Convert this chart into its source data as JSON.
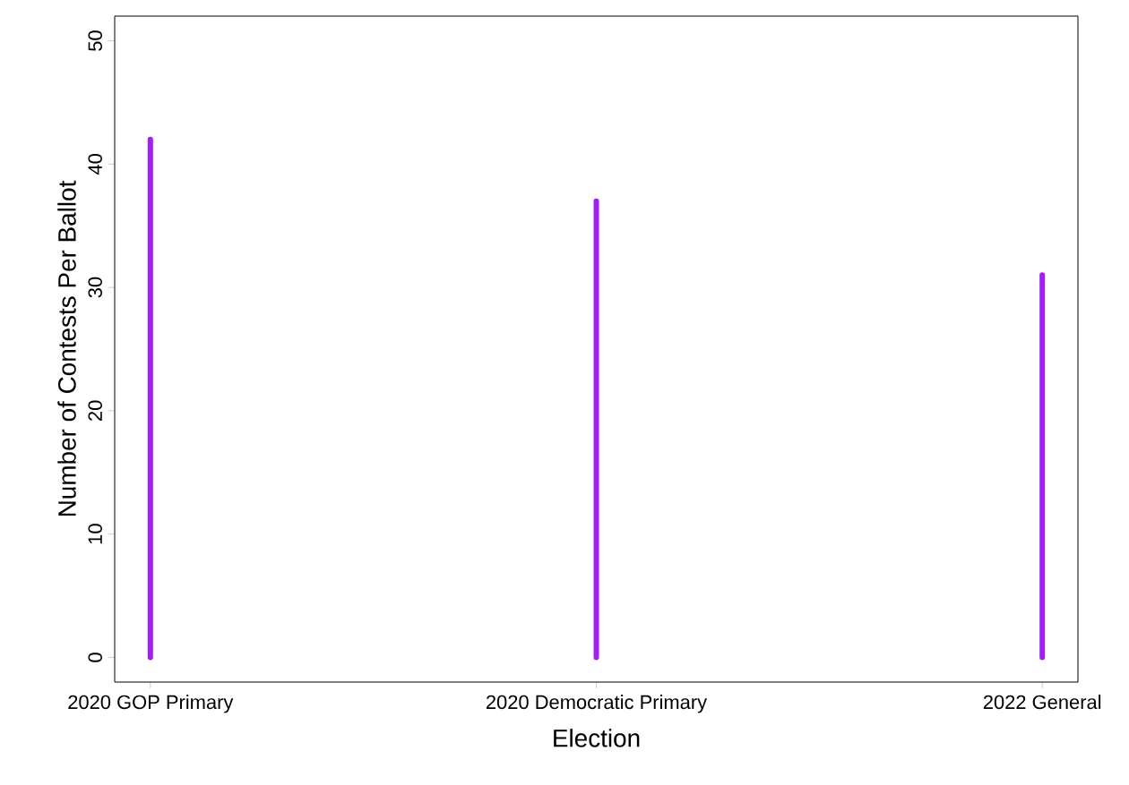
{
  "chart_data": {
    "type": "bar",
    "xlabel": "Election",
    "ylabel": "Number of Contests Per Ballot",
    "categories": [
      "2020 GOP Primary",
      "2020 Democratic Primary",
      "2022 General"
    ],
    "values": [
      42,
      37,
      31
    ],
    "color": "#a020f0",
    "ylim": [
      -2,
      52
    ],
    "yticks": [
      0,
      10,
      20,
      30,
      40,
      50
    ]
  }
}
